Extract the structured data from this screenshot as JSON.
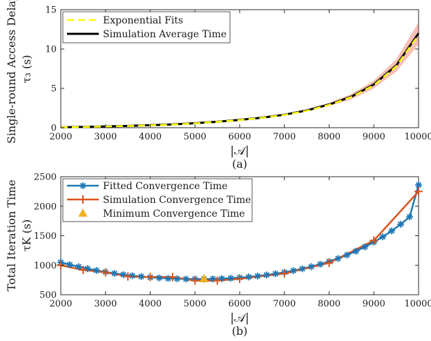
{
  "chart_data": [
    {
      "type": "line",
      "caption": "(a)",
      "ylabel_line1": "Single-round Access Delay",
      "ylabel_line2": "τ₃ (s)",
      "xlabel": "|𝒜|",
      "xlim": [
        2000,
        10000
      ],
      "ylim": [
        0,
        15
      ],
      "xticks": [
        2000,
        3000,
        4000,
        5000,
        6000,
        7000,
        8000,
        9000,
        10000
      ],
      "yticks": [
        0,
        5,
        10,
        15
      ],
      "grid": false,
      "legend_position": "top-left",
      "series": [
        {
          "name": "Exponential Fits",
          "style": "dashed",
          "color": "#ffff00",
          "x": [
            2000,
            2500,
            3000,
            3500,
            4000,
            4500,
            5000,
            5500,
            6000,
            6500,
            7000,
            7500,
            8000,
            8500,
            9000,
            9500,
            10000
          ],
          "y": [
            0.05,
            0.09,
            0.15,
            0.22,
            0.3,
            0.4,
            0.55,
            0.75,
            0.98,
            1.25,
            1.62,
            2.15,
            2.9,
            3.9,
            5.4,
            7.8,
            11.8
          ]
        },
        {
          "name": "Simulation Average Time",
          "style": "solid",
          "color": "#000000",
          "x": [
            2000,
            2500,
            3000,
            3500,
            4000,
            4500,
            5000,
            5500,
            6000,
            6500,
            7000,
            7500,
            8000,
            8500,
            9000,
            9500,
            10000
          ],
          "y": [
            0.05,
            0.1,
            0.16,
            0.23,
            0.32,
            0.42,
            0.57,
            0.76,
            1.0,
            1.27,
            1.65,
            2.2,
            2.95,
            3.95,
            5.5,
            7.9,
            12.0
          ]
        }
      ],
      "band": {
        "color": "#e8472a",
        "x": [
          7000,
          7500,
          8000,
          8500,
          9000,
          9500,
          10000
        ],
        "lower": [
          1.55,
          2.05,
          2.75,
          3.6,
          5.0,
          7.1,
          10.6
        ],
        "upper": [
          1.75,
          2.35,
          3.15,
          4.3,
          6.0,
          8.7,
          13.4
        ]
      }
    },
    {
      "type": "line",
      "caption": "(b)",
      "ylabel_line1": "Total Iteration Time",
      "ylabel_line2": "τK (s)",
      "xlabel": "|𝒜|",
      "xlim": [
        2000,
        10000
      ],
      "ylim": [
        500,
        2500
      ],
      "xticks": [
        2000,
        3000,
        4000,
        5000,
        6000,
        7000,
        8000,
        9000,
        10000
      ],
      "yticks": [
        500,
        1000,
        1500,
        2000,
        2500
      ],
      "grid": false,
      "legend_position": "top-left",
      "series": [
        {
          "name": "Fitted Convergence Time",
          "marker": "asterisk",
          "color": "#1f77b4",
          "x": [
            2000,
            2200,
            2400,
            2600,
            2800,
            3000,
            3200,
            3400,
            3600,
            3800,
            4000,
            4200,
            4400,
            4600,
            4800,
            5000,
            5200,
            5400,
            5600,
            5800,
            6000,
            6200,
            6400,
            6600,
            6800,
            7000,
            7200,
            7400,
            7600,
            7800,
            8000,
            8200,
            8400,
            8600,
            8800,
            9000,
            9200,
            9400,
            9600,
            9800,
            10000
          ],
          "y": [
            1050,
            1010,
            975,
            942,
            912,
            886,
            862,
            841,
            823,
            808,
            795,
            785,
            777,
            771,
            767,
            766,
            766,
            768,
            773,
            780,
            790,
            802,
            817,
            835,
            856,
            880,
            908,
            940,
            976,
            1017,
            1063,
            1115,
            1173,
            1238,
            1311,
            1392,
            1482,
            1583,
            1695,
            1820,
            2360
          ]
        },
        {
          "name": "Simulation Convergence Time",
          "marker": "plus",
          "color": "#d95319",
          "x": [
            2000,
            2500,
            3000,
            3500,
            4000,
            4500,
            5000,
            5500,
            6000,
            7000,
            8000,
            9000,
            10000
          ],
          "y": [
            1000,
            920,
            880,
            810,
            800,
            800,
            740,
            740,
            770,
            860,
            1040,
            1420,
            2250
          ]
        },
        {
          "name": "Minimum Convergence Time",
          "marker": "triangle",
          "color": "#edb120",
          "x": [
            5200
          ],
          "y": [
            770
          ]
        }
      ]
    }
  ]
}
